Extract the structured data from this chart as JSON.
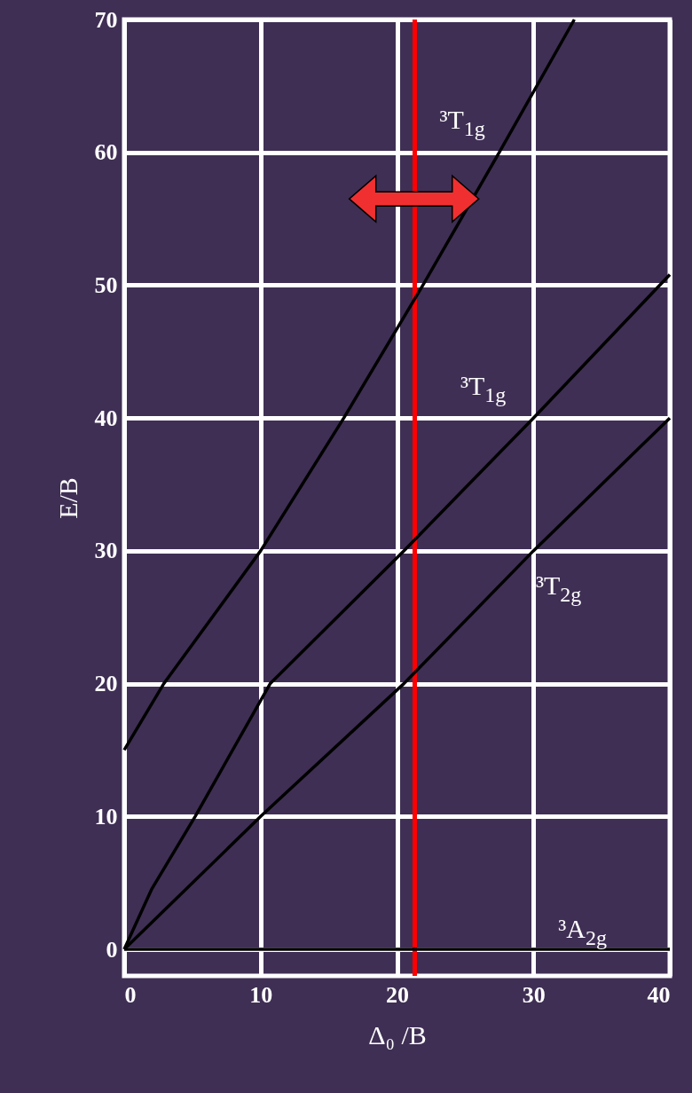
{
  "chart_data": {
    "type": "line",
    "xlabel": "Δ₀ /B",
    "ylabel": "E/B",
    "xlim": [
      0,
      40
    ],
    "xticks": [
      0,
      10,
      20,
      30,
      40
    ],
    "ylim": [
      -2,
      70
    ],
    "yticks": [
      0,
      10,
      20,
      30,
      40,
      50,
      60,
      70
    ],
    "grid": true,
    "marker": "none",
    "series": [
      {
        "name": "³A$_{2g}$",
        "color": "#000000",
        "x": [
          0,
          40
        ],
        "values": [
          0,
          0
        ]
      },
      {
        "name": "³T$_{2g}$",
        "color": "#000000",
        "x": [
          0,
          10,
          20.5,
          30,
          40
        ],
        "values": [
          0,
          10,
          20,
          30,
          40
        ]
      },
      {
        "name": "³T$_{1g}$",
        "color": "#000000",
        "x": [
          0,
          2,
          5.2,
          10.7,
          20.5,
          30,
          40
        ],
        "values": [
          0,
          4.5,
          10,
          20,
          30,
          40,
          50.8
        ]
      },
      {
        "name": "³T$_{1g}$",
        "color": "#000000",
        "x": [
          0,
          2.9,
          10,
          16.1,
          21.9,
          27.5,
          33
        ],
        "values": [
          15,
          20,
          30,
          40,
          50,
          60,
          70
        ]
      }
    ],
    "ref_lines": [
      {
        "axis": "x",
        "value": 21.3,
        "color": "#ff0000"
      }
    ]
  }
}
